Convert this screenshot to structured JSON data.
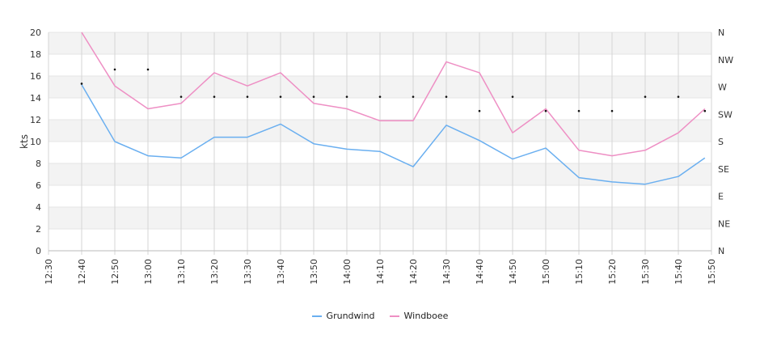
{
  "chart_data": {
    "type": "line",
    "ylabel": "kts",
    "ylim": [
      0,
      20
    ],
    "yticks": [
      0,
      2,
      4,
      6,
      8,
      10,
      12,
      14,
      16,
      18,
      20
    ],
    "x_tick_labels": [
      "12:30",
      "12:40",
      "12:50",
      "13:00",
      "13:10",
      "13:20",
      "13:30",
      "13:40",
      "13:50",
      "14:00",
      "14:10",
      "14:20",
      "14:30",
      "14:40",
      "14:50",
      "15:00",
      "15:10",
      "15:20",
      "15:30",
      "15:40",
      "15:50"
    ],
    "y2_tick_labels": [
      "N",
      "NE",
      "E",
      "SE",
      "S",
      "SW",
      "W",
      "NW",
      "N"
    ],
    "grid": true,
    "legend_position": "bottom",
    "series": [
      {
        "name": "Grundwind",
        "color": "#6aaff0",
        "points": [
          {
            "x": "12:40",
            "y": 15.2
          },
          {
            "x": "12:50",
            "y": 10.0
          },
          {
            "x": "13:00",
            "y": 8.7
          },
          {
            "x": "13:10",
            "y": 8.5
          },
          {
            "x": "13:20",
            "y": 10.4
          },
          {
            "x": "13:30",
            "y": 10.4
          },
          {
            "x": "13:40",
            "y": 11.6
          },
          {
            "x": "13:50",
            "y": 9.8
          },
          {
            "x": "14:00",
            "y": 9.3
          },
          {
            "x": "14:10",
            "y": 9.1
          },
          {
            "x": "14:20",
            "y": 7.7
          },
          {
            "x": "14:30",
            "y": 11.5
          },
          {
            "x": "14:40",
            "y": 10.1
          },
          {
            "x": "14:50",
            "y": 8.4
          },
          {
            "x": "15:00",
            "y": 9.4
          },
          {
            "x": "15:10",
            "y": 6.7
          },
          {
            "x": "15:20",
            "y": 6.3
          },
          {
            "x": "15:30",
            "y": 6.1
          },
          {
            "x": "15:40",
            "y": 6.8
          },
          {
            "x": "15:48",
            "y": 8.5
          }
        ]
      },
      {
        "name": "Windboee",
        "color": "#ee8fc4",
        "points": [
          {
            "x": "12:40",
            "y": 20.0
          },
          {
            "x": "12:50",
            "y": 15.1
          },
          {
            "x": "13:00",
            "y": 13.0
          },
          {
            "x": "13:10",
            "y": 13.5
          },
          {
            "x": "13:20",
            "y": 16.3
          },
          {
            "x": "13:30",
            "y": 15.1
          },
          {
            "x": "13:40",
            "y": 16.3
          },
          {
            "x": "13:50",
            "y": 13.5
          },
          {
            "x": "14:00",
            "y": 13.0
          },
          {
            "x": "14:10",
            "y": 11.9
          },
          {
            "x": "14:20",
            "y": 11.9
          },
          {
            "x": "14:30",
            "y": 17.3
          },
          {
            "x": "14:40",
            "y": 16.3
          },
          {
            "x": "14:50",
            "y": 10.8
          },
          {
            "x": "15:00",
            "y": 13.0
          },
          {
            "x": "15:10",
            "y": 9.2
          },
          {
            "x": "15:20",
            "y": 8.7
          },
          {
            "x": "15:30",
            "y": 9.2
          },
          {
            "x": "15:40",
            "y": 10.8
          },
          {
            "x": "15:48",
            "y": 13.0
          }
        ]
      }
    ],
    "direction_markers": [
      {
        "x": "12:40",
        "y": 15.3
      },
      {
        "x": "12:50",
        "y": 16.6
      },
      {
        "x": "13:00",
        "y": 16.6
      },
      {
        "x": "13:10",
        "y": 14.1
      },
      {
        "x": "13:20",
        "y": 14.1
      },
      {
        "x": "13:30",
        "y": 14.1
      },
      {
        "x": "13:40",
        "y": 14.1
      },
      {
        "x": "13:50",
        "y": 14.1
      },
      {
        "x": "14:00",
        "y": 14.1
      },
      {
        "x": "14:10",
        "y": 14.1
      },
      {
        "x": "14:20",
        "y": 14.1
      },
      {
        "x": "14:30",
        "y": 14.1
      },
      {
        "x": "14:40",
        "y": 12.8
      },
      {
        "x": "14:50",
        "y": 14.1
      },
      {
        "x": "15:00",
        "y": 12.8
      },
      {
        "x": "15:10",
        "y": 12.8
      },
      {
        "x": "15:20",
        "y": 12.8
      },
      {
        "x": "15:30",
        "y": 14.1
      },
      {
        "x": "15:40",
        "y": 14.1
      },
      {
        "x": "15:48",
        "y": 12.8
      }
    ]
  }
}
